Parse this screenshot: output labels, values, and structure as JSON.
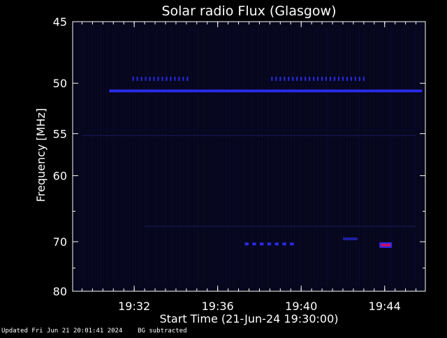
{
  "chart_data": {
    "type": "heatmap",
    "title": "Solar radio Flux (Glasgow)",
    "xlabel": "Start Time (21-Jun-24 19:30:00)",
    "ylabel": "Frequency [MHz]",
    "x_unit": "minutes after 19:30",
    "xlim": [
      -0.95,
      15.95
    ],
    "ylim": [
      45,
      80
    ],
    "y_scale": "reciprocal",
    "x_ticks": [
      {
        "value": 2,
        "label": "19:32"
      },
      {
        "value": 6,
        "label": "19:36"
      },
      {
        "value": 10,
        "label": "19:40"
      },
      {
        "value": 14,
        "label": "19:44"
      }
    ],
    "y_ticks": [
      {
        "value": 45,
        "label": "45"
      },
      {
        "value": 50,
        "label": "50"
      },
      {
        "value": 55,
        "label": "55"
      },
      {
        "value": 60,
        "label": "60"
      },
      {
        "value": 70,
        "label": "70"
      },
      {
        "value": 80,
        "label": "80"
      }
    ],
    "background_color": "#06061c",
    "colors": {
      "faint": "#14144a",
      "medium": "#1e1e9e",
      "strong": "#2a2ae8",
      "peak": "#c0106a"
    },
    "features": [
      {
        "kind": "comb",
        "freq": 49.6,
        "t_start": 1.95,
        "t_end": 4.55,
        "step": 0.2,
        "intensity": "strong"
      },
      {
        "kind": "comb",
        "freq": 49.6,
        "t_start": 8.6,
        "t_end": 13.1,
        "step": 0.2,
        "intensity": "strong"
      },
      {
        "kind": "line",
        "freq": 50.7,
        "t_start": 0.8,
        "t_end": 15.8,
        "intensity": "strong"
      },
      {
        "kind": "line",
        "freq": 70.4,
        "t_start": 7.3,
        "t_end": 9.5,
        "intensity": "strong",
        "dashed": true
      },
      {
        "kind": "line",
        "freq": 69.5,
        "t_start": 12.0,
        "t_end": 12.7,
        "intensity": "medium"
      },
      {
        "kind": "patch",
        "freq": 70.6,
        "t_start": 13.75,
        "t_end": 14.35,
        "intensity": "peak"
      },
      {
        "kind": "line",
        "freq": 55.2,
        "t_start": -0.5,
        "t_end": 15.5,
        "intensity": "faint"
      },
      {
        "kind": "line",
        "freq": 67.4,
        "t_start": 2.5,
        "t_end": 15.5,
        "intensity": "faint"
      }
    ]
  },
  "footer": {
    "updated": "Updated Fri Jun 21 20:01:41 2024",
    "mode": "BG subtracted"
  }
}
